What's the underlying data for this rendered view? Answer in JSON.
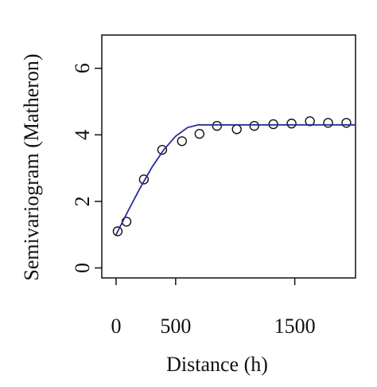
{
  "chart_data": {
    "type": "scatter",
    "xlabel": "Distance (h)",
    "ylabel": "Semivariogram (Matheron)",
    "xlim": [
      -120,
      2010
    ],
    "ylim": [
      -0.3,
      7.0
    ],
    "xticks": [
      0,
      500,
      1500
    ],
    "yticks": [
      0,
      2,
      4,
      6
    ],
    "series": [
      {
        "type": "scatter",
        "color": "#111111",
        "x": [
          13,
          87,
          233,
          387,
          553,
          700,
          847,
          1013,
          1160,
          1320,
          1473,
          1627,
          1780,
          1933
        ],
        "values": [
          1.1,
          1.39,
          2.66,
          3.55,
          3.81,
          4.03,
          4.27,
          4.17,
          4.27,
          4.32,
          4.34,
          4.41,
          4.36,
          4.36
        ]
      },
      {
        "type": "line",
        "color": "#2a2a9a",
        "x": [
          0,
          100,
          200,
          300,
          400,
          500,
          600,
          690,
          2010
        ],
        "values": [
          1.0,
          1.71,
          2.39,
          3.02,
          3.55,
          3.96,
          4.22,
          4.3,
          4.3
        ]
      }
    ]
  }
}
